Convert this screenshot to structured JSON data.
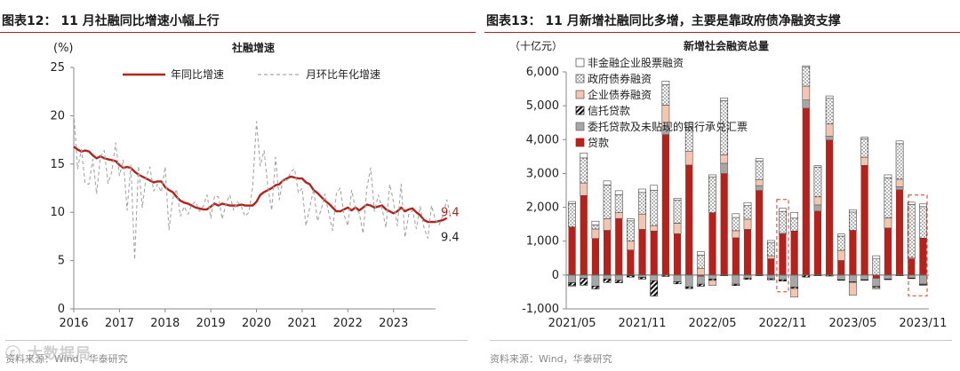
{
  "left": {
    "title": "图表12： 11 月社融同比增速小幅上行",
    "source": "资料来源：Wind，华泰研究",
    "chart_data": {
      "type": "line",
      "title": "社融增速",
      "unit_label": "(%)",
      "ylim": [
        0,
        25
      ],
      "yticks": [
        0,
        5,
        10,
        15,
        20,
        25
      ],
      "xlim": [
        2016,
        2023.92
      ],
      "xticks": [
        2016,
        2017,
        2018,
        2019,
        2020,
        2021,
        2022,
        2023
      ],
      "series": [
        {
          "name": "年同比增速",
          "color": "#b2231d",
          "start": "2016-01",
          "values": [
            16.8,
            16.5,
            16.3,
            16.4,
            16.3,
            15.9,
            15.6,
            15.8,
            15.6,
            15.5,
            15.4,
            15.3,
            14.9,
            14.6,
            14.7,
            14.6,
            14.2,
            13.9,
            13.7,
            13.5,
            13.3,
            13.1,
            13.2,
            13.2,
            12.6,
            12.3,
            12.1,
            11.6,
            11.2,
            11.0,
            10.9,
            10.7,
            10.5,
            10.4,
            10.3,
            10.3,
            10.6,
            10.9,
            10.7,
            10.9,
            10.8,
            10.7,
            10.7,
            10.7,
            10.8,
            10.7,
            10.7,
            10.7,
            11.1,
            11.8,
            12.1,
            12.3,
            12.5,
            12.8,
            12.9,
            13.3,
            13.5,
            13.7,
            13.6,
            13.5,
            13.5,
            13.1,
            12.9,
            12.3,
            12.0,
            11.6,
            11.2,
            10.9,
            10.5,
            10.1,
            10.1,
            10.3,
            10.5,
            10.2,
            10.5,
            10.2,
            10.5,
            10.8,
            10.7,
            10.5,
            10.6,
            10.7,
            10.3,
            10.1,
            9.9,
            10.1,
            10.5,
            10.1,
            10.3,
            10.4,
            10.0,
            9.7,
            9.2,
            9.0,
            9.0,
            9.0,
            9.1,
            9.2,
            9.4
          ]
        },
        {
          "name": "月环比年化增速",
          "color": "#a6a6a6",
          "start": "2016-01",
          "values": [
            20.3,
            14.5,
            16.5,
            13.0,
            12.9,
            15.5,
            11.9,
            15.8,
            16.4,
            13.0,
            14.2,
            17.2,
            13.8,
            15.4,
            10.2,
            14.9,
            5.1,
            14.8,
            10.5,
            13.7,
            14.7,
            12.2,
            12.9,
            12.1,
            14.7,
            8.2,
            11.4,
            12.4,
            9.6,
            10.6,
            9.8,
            10.8,
            11.1,
            10.1,
            10.6,
            11.8,
            9.4,
            11.7,
            11.6,
            9.3,
            10.9,
            11.8,
            10.2,
            11.1,
            10.6,
            9.6,
            10.0,
            12.7,
            19.4,
            14.8,
            16.4,
            12.6,
            10.2,
            15.7,
            11.3,
            13.5,
            13.3,
            14.2,
            14.5,
            12.0,
            12.5,
            8.6,
            10.5,
            12.4,
            9.1,
            10.3,
            11.9,
            9.9,
            8.1,
            12.0,
            12.5,
            9.7,
            8.6,
            12.3,
            10.4,
            9.9,
            7.8,
            12.5,
            14.6,
            10.1,
            11.8,
            10.3,
            8.4,
            12.9,
            11.1,
            8.6,
            12.9,
            7.4,
            9.8,
            10.2,
            8.3,
            10.6,
            8.4,
            7.3,
            10.7,
            9.2,
            8.7,
            9.7,
            11.3,
            9.5
          ]
        }
      ],
      "end_labels": [
        {
          "text": "9.4",
          "color": "#b2231d",
          "value": 9.4
        },
        {
          "text": "9.4",
          "color": "#222222",
          "value": 9.4
        }
      ]
    }
  },
  "right": {
    "title": "图表13： 11 月新增社融同比多增，主要是靠政府债净融资支撑",
    "source": "资料来源：Wind，华泰研究",
    "chart_data": {
      "type": "bar",
      "stacked": true,
      "title": "新增社会融资总量",
      "unit_label": "（十亿元）",
      "ylim": [
        -1000,
        6000
      ],
      "yticks": [
        -1000,
        0,
        1000,
        2000,
        3000,
        4000,
        5000,
        6000
      ],
      "ytick_labels": [
        "-1,000",
        "0",
        "1,000",
        "2,000",
        "3,000",
        "4,000",
        "5,000",
        "6,000"
      ],
      "categories": [
        "2021/05",
        "2021/06",
        "2021/07",
        "2021/08",
        "2021/09",
        "2021/10",
        "2021/11",
        "2021/12",
        "2022/01",
        "2022/02",
        "2022/03",
        "2022/04",
        "2022/05",
        "2022/06",
        "2022/07",
        "2022/08",
        "2022/09",
        "2022/10",
        "2022/11",
        "2022/12",
        "2023/01",
        "2023/02",
        "2023/03",
        "2023/04",
        "2023/05",
        "2023/06",
        "2023/07",
        "2023/08",
        "2023/09",
        "2023/10",
        "2023/11"
      ],
      "xtick_labels": [
        "2021/05",
        "2021/11",
        "2022/05",
        "2022/11",
        "2023/05",
        "2023/11"
      ],
      "xtick_indices": [
        0,
        6,
        12,
        18,
        24,
        30
      ],
      "highlight_indices": [
        18,
        30
      ],
      "series": [
        {
          "name": "贷款",
          "pattern": "solid-red",
          "values": [
            1420,
            2350,
            1080,
            1320,
            1670,
            740,
            1350,
            1300,
            4150,
            1220,
            3250,
            -40,
            1840,
            3000,
            1100,
            1350,
            2500,
            480,
            1210,
            1300,
            4930,
            1890,
            3990,
            430,
            1320,
            3240,
            -100,
            1390,
            2520,
            480,
            1090
          ]
        },
        {
          "name": "委托贷款及未贴现的银行承兑汇票",
          "pattern": "gray",
          "values": [
            -230,
            -100,
            -330,
            -120,
            -160,
            -20,
            -70,
            -170,
            250,
            -200,
            -350,
            -230,
            -120,
            300,
            -270,
            -90,
            140,
            -110,
            -140,
            -360,
            240,
            180,
            110,
            -140,
            -200,
            -140,
            -240,
            -120,
            90,
            -90,
            -270
          ]
        },
        {
          "name": "信托贷款",
          "pattern": "black-diag",
          "values": [
            -80,
            -200,
            -80,
            -100,
            -70,
            -40,
            -50,
            -450,
            -40,
            -60,
            -50,
            -60,
            -40,
            -20,
            -40,
            -40,
            -20,
            -30,
            -40,
            -40,
            -60,
            -20,
            -30,
            -10,
            -20,
            -10,
            -30,
            -10,
            -20,
            -10,
            -20
          ]
        },
        {
          "name": "企业债券融资",
          "pattern": "peach",
          "values": [
            -30,
            370,
            280,
            340,
            170,
            260,
            450,
            160,
            620,
            310,
            400,
            200,
            -150,
            250,
            210,
            300,
            170,
            90,
            20,
            -250,
            410,
            240,
            360,
            300,
            -380,
            240,
            -40,
            300,
            220,
            40,
            -10
          ]
        },
        {
          "name": "政府债券融资",
          "pattern": "dots",
          "values": [
            690,
            740,
            120,
            1000,
            530,
            600,
            640,
            1040,
            600,
            680,
            710,
            390,
            1060,
            1600,
            390,
            400,
            560,
            390,
            650,
            380,
            560,
            880,
            760,
            420,
            540,
            540,
            490,
            1180,
            1050,
            1560,
            930
          ]
        },
        {
          "name": "非金融企业股票融资",
          "pattern": "white",
          "values": [
            60,
            140,
            110,
            120,
            120,
            60,
            100,
            150,
            110,
            60,
            140,
            100,
            60,
            80,
            110,
            90,
            70,
            60,
            90,
            170,
            40,
            40,
            70,
            60,
            70,
            50,
            80,
            90,
            80,
            70,
            80
          ]
        }
      ]
    }
  },
  "watermark": "大数据局"
}
